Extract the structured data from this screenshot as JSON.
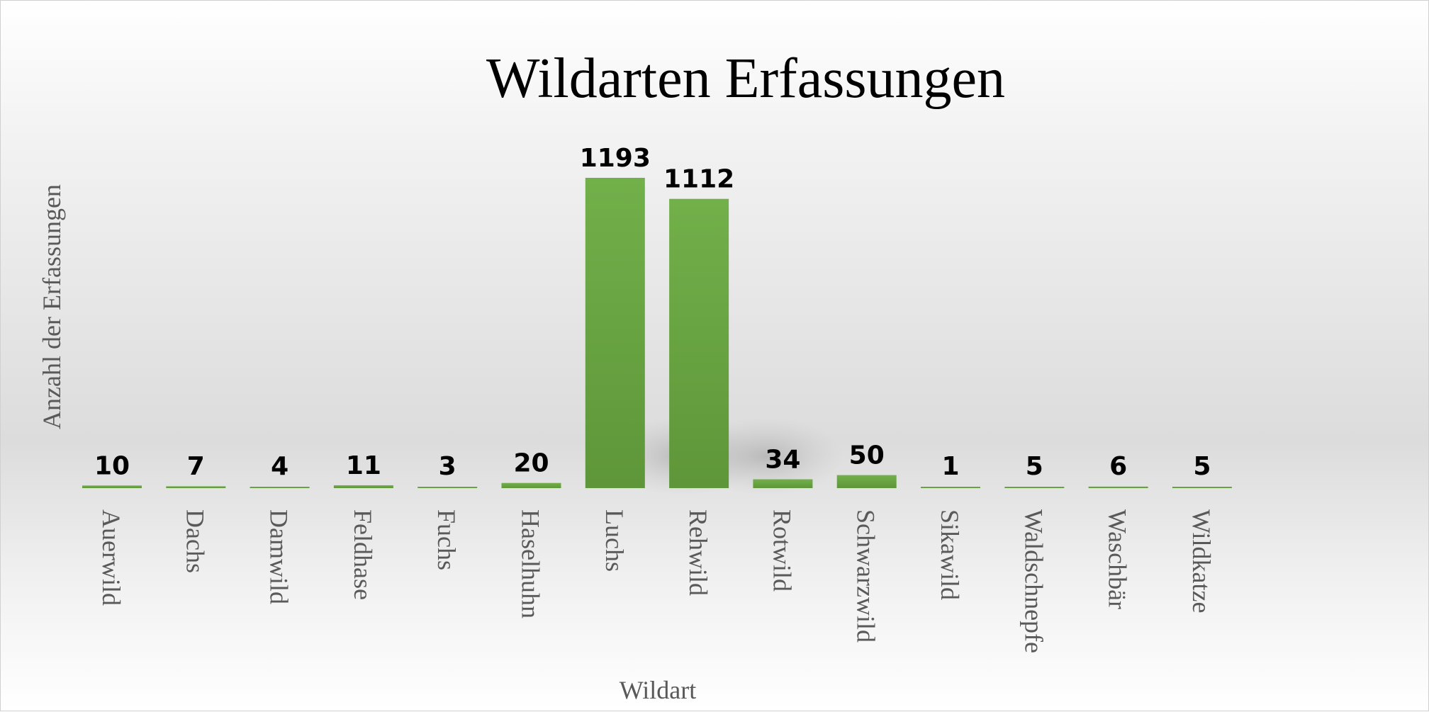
{
  "chart_data": {
    "type": "bar",
    "title": "Wildarten Erfassungen",
    "xlabel": "Wildart",
    "ylabel": "Anzahl der Erfassungen",
    "categories": [
      "Auerwild",
      "Dachs",
      "Damwild",
      "Feldhase",
      "Fuchs",
      "Haselhuhn",
      "Luchs",
      "Rehwild",
      "Rotwild",
      "Schwarzwild",
      "Sikawild",
      "Waldschnepfe",
      "Waschbär",
      "Wildkatze"
    ],
    "values": [
      10,
      7,
      4,
      11,
      3,
      20,
      1193,
      1112,
      34,
      50,
      1,
      5,
      6,
      5
    ],
    "ylim": [
      0,
      1200
    ],
    "grid": false,
    "legend": "none",
    "bar_color": "#6aa443"
  }
}
